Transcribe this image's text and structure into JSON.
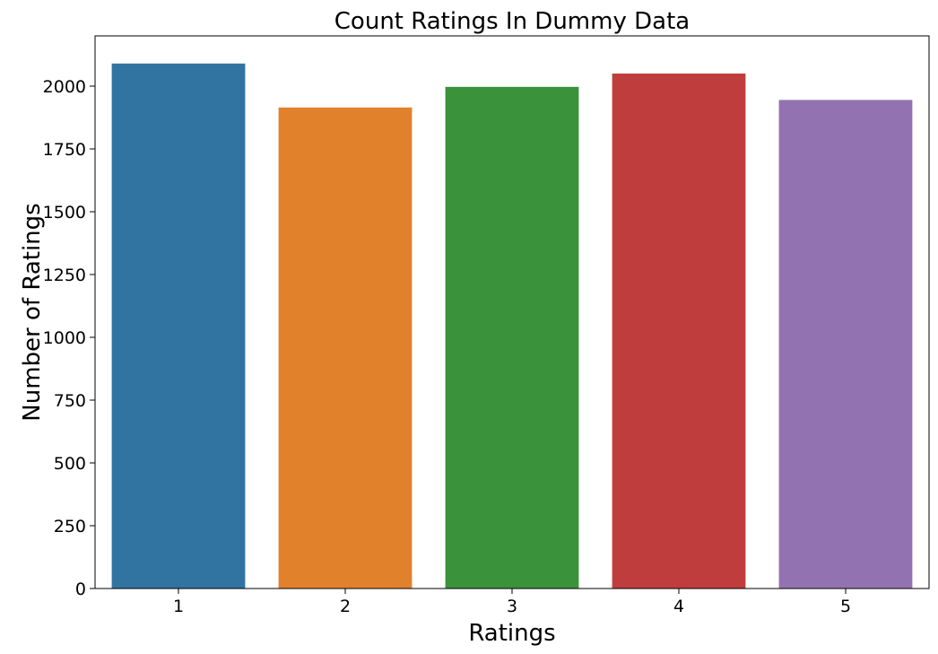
{
  "chart_data": {
    "type": "bar",
    "title": "Count Ratings In Dummy Data",
    "xlabel": "Ratings",
    "ylabel": "Number of Ratings",
    "categories": [
      "1",
      "2",
      "3",
      "4",
      "5"
    ],
    "values": [
      2090,
      1915,
      1997,
      2050,
      1945
    ],
    "colors": [
      "#3274a1",
      "#e1812c",
      "#3a923a",
      "#c03d3e",
      "#9372b2"
    ],
    "ylim": [
      0,
      2200
    ],
    "yticks": [
      0,
      250,
      500,
      750,
      1000,
      1250,
      1500,
      1750,
      2000
    ],
    "grid": false,
    "legend": "none"
  }
}
